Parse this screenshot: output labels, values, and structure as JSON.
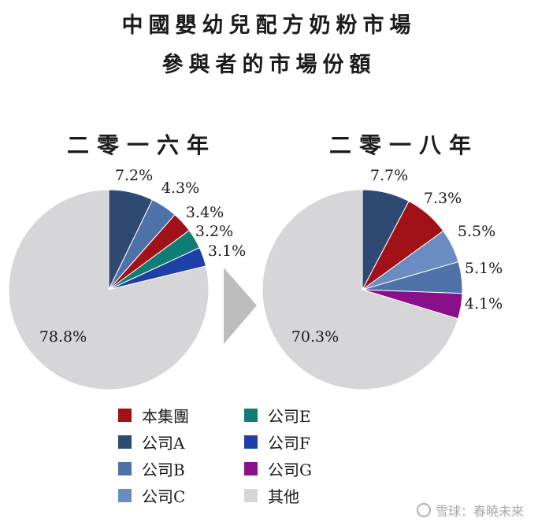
{
  "title_line1": "中國嬰幼兒配方奶粉市場",
  "title_line2": "參與者的市場份額",
  "watermark": "雪球：春曉未來",
  "chart_data": [
    {
      "type": "pie",
      "title": "二零一六年",
      "slices": [
        {
          "label": "公司A",
          "value": 7.2,
          "value_label": "7.2%",
          "color": "#2e4a73"
        },
        {
          "label": "公司B",
          "value": 4.3,
          "value_label": "4.3%",
          "color": "#4e71a8"
        },
        {
          "label": "本集團",
          "value": 3.4,
          "value_label": "3.4%",
          "color": "#a01218"
        },
        {
          "label": "公司E",
          "value": 3.2,
          "value_label": "3.2%",
          "color": "#0f7d73"
        },
        {
          "label": "公司F",
          "value": 3.1,
          "value_label": "3.1%",
          "color": "#1d3fa6"
        },
        {
          "label": "其他",
          "value": 78.8,
          "value_label": "78.8%",
          "color": "#d6d6d8"
        }
      ]
    },
    {
      "type": "pie",
      "title": "二零一八年",
      "slices": [
        {
          "label": "公司A",
          "value": 7.7,
          "value_label": "7.7%",
          "color": "#2e4a73"
        },
        {
          "label": "本集團",
          "value": 7.3,
          "value_label": "7.3%",
          "color": "#a01218"
        },
        {
          "label": "公司C",
          "value": 5.5,
          "value_label": "5.5%",
          "color": "#6b8cc0"
        },
        {
          "label": "公司B",
          "value": 5.1,
          "value_label": "5.1%",
          "color": "#4e71a8"
        },
        {
          "label": "公司G",
          "value": 4.1,
          "value_label": "4.1%",
          "color": "#8a0f8a"
        },
        {
          "label": "其他",
          "value": 70.3,
          "value_label": "70.3%",
          "color": "#d6d6d8"
        }
      ]
    }
  ],
  "legend": [
    {
      "label": "本集團",
      "color": "#a01218"
    },
    {
      "label": "公司E",
      "color": "#0f7d73"
    },
    {
      "label": "公司A",
      "color": "#2e4a73"
    },
    {
      "label": "公司F",
      "color": "#1d3fa6"
    },
    {
      "label": "公司B",
      "color": "#4e71a8"
    },
    {
      "label": "公司G",
      "color": "#8a0f8a"
    },
    {
      "label": "公司C",
      "color": "#6b8cc0"
    },
    {
      "label": "其他",
      "color": "#d6d6d8"
    }
  ]
}
